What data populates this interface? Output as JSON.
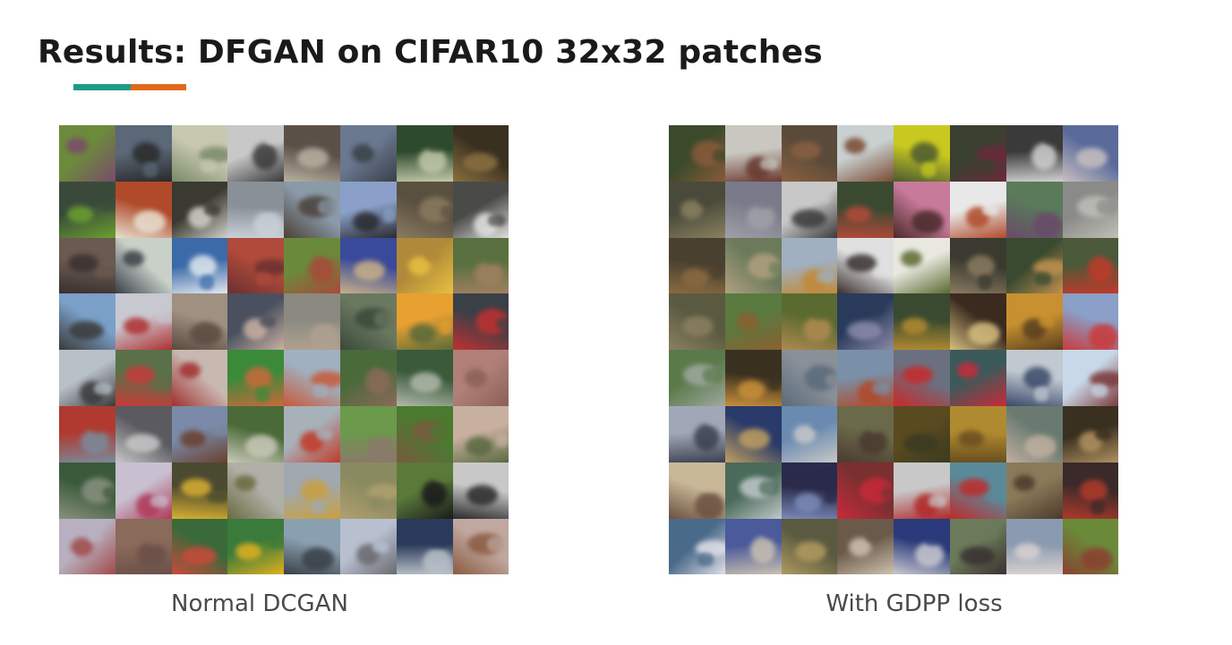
{
  "slide": {
    "title": "Results: DFGAN on CIFAR10 32x32 patches",
    "accent_colors": [
      "#1f9a8a",
      "#e06a1b"
    ]
  },
  "panels": [
    {
      "caption": "Normal DCGAN",
      "image_description": "8x8 grid of generated CIFAR10 samples",
      "tiles": [
        [
          "#6c8a3c",
          "#7a4a6a"
        ],
        [
          "#5a6878",
          "#2a2a2a"
        ],
        [
          "#c8c8b0",
          "#7a8a6a"
        ],
        [
          "#c8c8c8",
          "#3a3a3a"
        ],
        [
          "#5a5048",
          "#b8b0a0"
        ],
        [
          "#6a7890",
          "#3a4048"
        ],
        [
          "#2e4a2e",
          "#c0c8a8"
        ],
        [
          "#3a3020",
          "#8a7040"
        ],
        [
          "#3a4a3a",
          "#6aa030"
        ],
        [
          "#b04a2a",
          "#e8e0d0"
        ],
        [
          "#3a3a30",
          "#d0d0c8"
        ],
        [
          "#8a9098",
          "#c8d0d8"
        ],
        [
          "#8a9aa8",
          "#4a4038"
        ],
        [
          "#8aa0c8",
          "#2a2a30"
        ],
        [
          "#5a5040",
          "#8a7a60"
        ],
        [
          "#4a4a48",
          "#e0e0e0"
        ],
        [
          "#6a5a50",
          "#3a3030"
        ],
        [
          "#c8d0c8",
          "#3a4048"
        ],
        [
          "#3a6aa8",
          "#e0e8f0"
        ],
        [
          "#b04a3a",
          "#6a3030"
        ],
        [
          "#6a8a3a",
          "#a84a3a"
        ],
        [
          "#3a4a9a",
          "#c8b088"
        ],
        [
          "#b08a3a",
          "#e8c040"
        ],
        [
          "#5a7040",
          "#a08060"
        ],
        [
          "#7aa0c8",
          "#3a3a3a"
        ],
        [
          "#c8c8d0",
          "#b03030"
        ],
        [
          "#a09080",
          "#5a4a40"
        ],
        [
          "#4a5060",
          "#c8b0a0"
        ],
        [
          "#8a8a80",
          "#b0a090"
        ],
        [
          "#6a7860",
          "#3a4a38"
        ],
        [
          "#e8a030",
          "#5a6a3a"
        ],
        [
          "#3a4048",
          "#c03030"
        ],
        [
          "#b8c0c8",
          "#3a3a3a"
        ],
        [
          "#5a7048",
          "#c83a3a"
        ],
        [
          "#c8b8b0",
          "#a03030"
        ],
        [
          "#3a8a3a",
          "#c86a3a"
        ],
        [
          "#a0b0c0",
          "#c85a3a"
        ],
        [
          "#4a6a3a",
          "#8a6a5a"
        ],
        [
          "#3a5a3a",
          "#b0b8a8"
        ],
        [
          "#b08078",
          "#8a6058"
        ],
        [
          "#b03a30",
          "#7a8a9a"
        ],
        [
          "#5a5a60",
          "#c8c8c8"
        ],
        [
          "#7a8aa8",
          "#6a4030"
        ],
        [
          "#4a6a38",
          "#c8c8b8"
        ],
        [
          "#a8b0b8",
          "#c03a2a"
        ],
        [
          "#6a9a4a",
          "#8a7a6a"
        ],
        [
          "#4a7a30",
          "#7a5a40"
        ],
        [
          "#c8b0a0",
          "#5a6a40"
        ],
        [
          "#3a5a3a",
          "#8a9080"
        ],
        [
          "#c8c0d0",
          "#b03a5a"
        ],
        [
          "#4a4a30",
          "#d8b030"
        ],
        [
          "#b0b0a8",
          "#6a6a40"
        ],
        [
          "#a0a8b0",
          "#c8a040"
        ],
        [
          "#8a8a60",
          "#b0a070"
        ],
        [
          "#5a7a3a",
          "#1a1a1a"
        ],
        [
          "#c8c8c8",
          "#2a2a2a"
        ],
        [
          "#b8b0c0",
          "#a04a4a"
        ],
        [
          "#8a6a5a",
          "#6a5048"
        ],
        [
          "#3a6a3a",
          "#c84a3a"
        ],
        [
          "#3a7a3a",
          "#e0b020"
        ],
        [
          "#8aa0b0",
          "#3a4048"
        ],
        [
          "#b8c0d0",
          "#6a6a70"
        ],
        [
          "#2a3a5a",
          "#b8c0c8"
        ],
        [
          "#c0a8a0",
          "#8a5a40"
        ]
      ]
    },
    {
      "caption": "With GDPP loss",
      "image_description": "8x8 grid of generated CIFAR10 samples",
      "tiles": [
        [
          "#3a4a2a",
          "#8a5a3a"
        ],
        [
          "#c8c8c0",
          "#6a3a30"
        ],
        [
          "#5a4a3a",
          "#8a6040"
        ],
        [
          "#c8d0d0",
          "#7a4a30"
        ],
        [
          "#c8c820",
          "#4a5a30"
        ],
        [
          "#3a4030",
          "#6a2a3a"
        ],
        [
          "#3a3a3a",
          "#d0d0d0"
        ],
        [
          "#5a6a9a",
          "#c8c0c0"
        ],
        [
          "#4a4a3a",
          "#8a8060"
        ],
        [
          "#7a7a8a",
          "#a0a0a8"
        ],
        [
          "#c8c8c8",
          "#3a3a3a"
        ],
        [
          "#3a4a30",
          "#b04a3a"
        ],
        [
          "#c87a9a",
          "#4a2a2a"
        ],
        [
          "#e8e8e8",
          "#b04a2a"
        ],
        [
          "#5a7a5a",
          "#6a4a6a"
        ],
        [
          "#8a8a88",
          "#c0c0b8"
        ],
        [
          "#4a4030",
          "#8a6a40"
        ],
        [
          "#6a7a5a",
          "#b0a080"
        ],
        [
          "#a0b0c0",
          "#c08a3a"
        ],
        [
          "#e0e0e0",
          "#3a3030"
        ],
        [
          "#e8e8e0",
          "#5a6a30"
        ],
        [
          "#3a3a30",
          "#8a7a60"
        ],
        [
          "#3a4a30",
          "#c09050"
        ],
        [
          "#4a5a3a",
          "#c03a2a"
        ],
        [
          "#5a5a40",
          "#8a8060"
        ],
        [
          "#5a7a40",
          "#8a6030"
        ],
        [
          "#5a6a30",
          "#b08a50"
        ],
        [
          "#2a3a5a",
          "#8a8aa8"
        ],
        [
          "#3a4a30",
          "#b08a30"
        ],
        [
          "#3a2a20",
          "#d8c080"
        ],
        [
          "#c89030",
          "#5a4020"
        ],
        [
          "#8aa0c8",
          "#c83a3a"
        ],
        [
          "#5a7a4a",
          "#a0a8a0"
        ],
        [
          "#3a3020",
          "#c8903a"
        ],
        [
          "#8a9098",
          "#5a6a7a"
        ],
        [
          "#7a90a8",
          "#b04a2a"
        ],
        [
          "#6a7080",
          "#c82a2a"
        ],
        [
          "#3a5a5a",
          "#c82a3a"
        ],
        [
          "#c0c8d0",
          "#3a4a6a"
        ],
        [
          "#c8d8e8",
          "#7a3a3a"
        ],
        [
          "#a0a8b8",
          "#3a4050"
        ],
        [
          "#2a3a6a",
          "#c0a060"
        ],
        [
          "#6a8ab0",
          "#c8c8c8"
        ],
        [
          "#6a6a4a",
          "#4a3a30"
        ],
        [
          "#5a4a20",
          "#3a3a20"
        ],
        [
          "#b08a30",
          "#6a5020"
        ],
        [
          "#6a7a70",
          "#c0b0a0"
        ],
        [
          "#3a3020",
          "#b09060"
        ],
        [
          "#c8b898",
          "#6a5040"
        ],
        [
          "#4a6a5a",
          "#c0c8c8"
        ],
        [
          "#2a2a4a",
          "#7a8ab8"
        ],
        [
          "#7a3030",
          "#c82a3a"
        ],
        [
          "#c8c8c8",
          "#b02a2a"
        ],
        [
          "#5a8a9a",
          "#c02a2a"
        ],
        [
          "#8a7a5a",
          "#4a3a2a"
        ],
        [
          "#3a2a2a",
          "#b03a2a"
        ],
        [
          "#4a6a8a",
          "#e0e0e8"
        ],
        [
          "#4a5a9a",
          "#c8c0b0"
        ],
        [
          "#5a5a40",
          "#b09a60"
        ],
        [
          "#6a5a4a",
          "#d0c0b0"
        ],
        [
          "#2a3a7a",
          "#c8c8d0"
        ],
        [
          "#6a7a5a",
          "#3a3030"
        ],
        [
          "#8a9ab0",
          "#d8d0d0"
        ],
        [
          "#6a8a3a",
          "#8a4030"
        ]
      ]
    }
  ]
}
